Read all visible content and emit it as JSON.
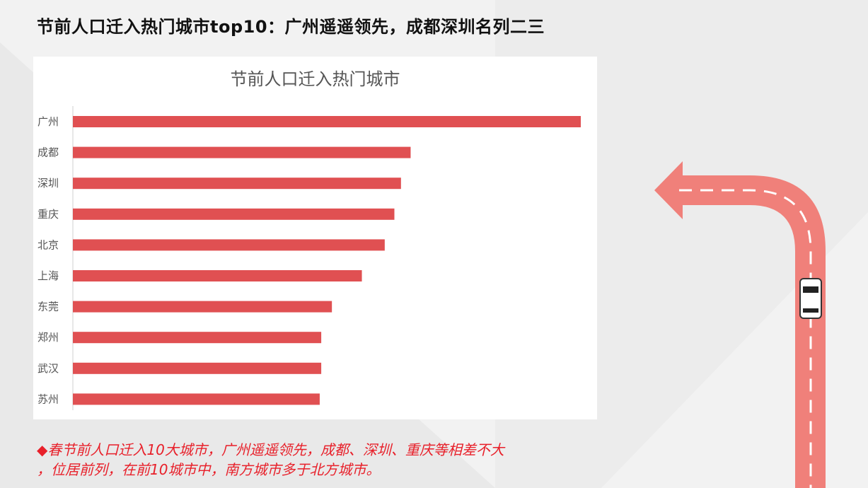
{
  "page": {
    "title": "节前人口迁入热门城市top10：广州遥遥领先，成都深圳名列二三",
    "note_bullet": "◆",
    "note_line1": "春节前人口迁入10大城市，广州遥遥领先，成都、深圳、重庆等相差不大",
    "note_line2": "，位居前列，在前10城市中，南方城市多于北方城市。"
  },
  "colors": {
    "bar": "#e05052",
    "road": "#f0807a",
    "note": "#e8202a"
  },
  "chart_data": {
    "type": "bar",
    "orientation": "horizontal",
    "title": "节前人口迁入热门城市",
    "categories": [
      "广州",
      "成都",
      "深圳",
      "重庆",
      "北京",
      "上海",
      "东莞",
      "郑州",
      "武汉",
      "苏州"
    ],
    "values": [
      100,
      66.5,
      64.6,
      63.3,
      61.4,
      56.9,
      51.0,
      48.9,
      48.9,
      48.6
    ],
    "xlim": [
      0,
      100
    ],
    "grid": false,
    "legend": "none"
  }
}
